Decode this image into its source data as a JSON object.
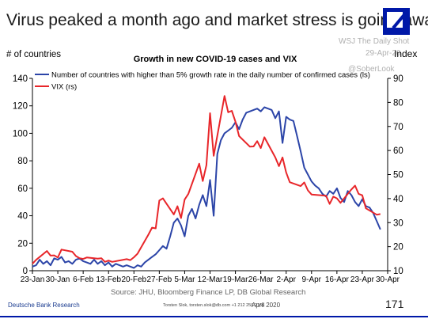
{
  "headline": "Virus peaked a month ago and market stress is going away",
  "watermarks": {
    "source": "WSJ The Daily Shot",
    "date": "29-Apr-20",
    "handle": "@SoberLook"
  },
  "chart_data": {
    "type": "line",
    "title": "Growth in new COVID-19 cases and VIX",
    "ylabel_left": "# of countries",
    "ylabel_right": "Index",
    "ylim_left": [
      0,
      140
    ],
    "ylim_right": [
      10,
      90
    ],
    "yticks_left": [
      0,
      20,
      40,
      60,
      80,
      100,
      120,
      140
    ],
    "yticks_right": [
      10,
      20,
      30,
      40,
      50,
      60,
      70,
      80,
      90
    ],
    "xlim": [
      "2020-01-23",
      "2020-04-30"
    ],
    "xtick_labels": [
      "23-Jan",
      "30-Jan",
      "6-Feb",
      "13-Feb",
      "20-Feb",
      "27-Feb",
      "5-Mar",
      "12-Mar",
      "19-Mar",
      "26-Mar",
      "2-Apr",
      "9-Apr",
      "16-Apr",
      "23-Apr",
      "30-Apr"
    ],
    "grid": false,
    "legend_position": "top-left",
    "series": [
      {
        "name": "Number of countries with higher than 5% growth rate in the daily number of confirmed cases (ls)",
        "axis": "left",
        "color": "#2c45a8",
        "points": [
          [
            "2020-01-23",
            3
          ],
          [
            "2020-01-24",
            4
          ],
          [
            "2020-01-25",
            8
          ],
          [
            "2020-01-26",
            5
          ],
          [
            "2020-01-27",
            7
          ],
          [
            "2020-01-28",
            4
          ],
          [
            "2020-01-29",
            9
          ],
          [
            "2020-01-30",
            8
          ],
          [
            "2020-01-31",
            10
          ],
          [
            "2020-02-01",
            6
          ],
          [
            "2020-02-02",
            7
          ],
          [
            "2020-02-03",
            5
          ],
          [
            "2020-02-04",
            8
          ],
          [
            "2020-02-05",
            9
          ],
          [
            "2020-02-06",
            7
          ],
          [
            "2020-02-07",
            6
          ],
          [
            "2020-02-08",
            5
          ],
          [
            "2020-02-09",
            8
          ],
          [
            "2020-02-10",
            5
          ],
          [
            "2020-02-11",
            7
          ],
          [
            "2020-02-12",
            4
          ],
          [
            "2020-02-13",
            6
          ],
          [
            "2020-02-14",
            3
          ],
          [
            "2020-02-15",
            5
          ],
          [
            "2020-02-16",
            4
          ],
          [
            "2020-02-17",
            3
          ],
          [
            "2020-02-18",
            4
          ],
          [
            "2020-02-19",
            3
          ],
          [
            "2020-02-20",
            2
          ],
          [
            "2020-02-21",
            4
          ],
          [
            "2020-02-22",
            3
          ],
          [
            "2020-02-23",
            6
          ],
          [
            "2020-02-24",
            8
          ],
          [
            "2020-02-25",
            10
          ],
          [
            "2020-02-26",
            12
          ],
          [
            "2020-02-27",
            15
          ],
          [
            "2020-02-28",
            18
          ],
          [
            "2020-02-29",
            16
          ],
          [
            "2020-03-01",
            25
          ],
          [
            "2020-03-02",
            35
          ],
          [
            "2020-03-03",
            38
          ],
          [
            "2020-03-04",
            33
          ],
          [
            "2020-03-05",
            25
          ],
          [
            "2020-03-06",
            40
          ],
          [
            "2020-03-07",
            45
          ],
          [
            "2020-03-08",
            38
          ],
          [
            "2020-03-09",
            48
          ],
          [
            "2020-03-10",
            55
          ],
          [
            "2020-03-11",
            47
          ],
          [
            "2020-03-12",
            66
          ],
          [
            "2020-03-13",
            40
          ],
          [
            "2020-03-14",
            85
          ],
          [
            "2020-03-15",
            95
          ],
          [
            "2020-03-16",
            100
          ],
          [
            "2020-03-17",
            102
          ],
          [
            "2020-03-18",
            104
          ],
          [
            "2020-03-19",
            108
          ],
          [
            "2020-03-20",
            103
          ],
          [
            "2020-03-21",
            110
          ],
          [
            "2020-03-22",
            115
          ],
          [
            "2020-03-23",
            116
          ],
          [
            "2020-03-24",
            117
          ],
          [
            "2020-03-25",
            118
          ],
          [
            "2020-03-26",
            116
          ],
          [
            "2020-03-27",
            119
          ],
          [
            "2020-03-28",
            118
          ],
          [
            "2020-03-29",
            117
          ],
          [
            "2020-03-30",
            111
          ],
          [
            "2020-03-31",
            116
          ],
          [
            "2020-04-01",
            93
          ],
          [
            "2020-04-02",
            112
          ],
          [
            "2020-04-03",
            110
          ],
          [
            "2020-04-04",
            109
          ],
          [
            "2020-04-05",
            98
          ],
          [
            "2020-04-06",
            87
          ],
          [
            "2020-04-07",
            75
          ],
          [
            "2020-04-08",
            70
          ],
          [
            "2020-04-09",
            65
          ],
          [
            "2020-04-10",
            62
          ],
          [
            "2020-04-11",
            60
          ],
          [
            "2020-04-12",
            56
          ],
          [
            "2020-04-13",
            54
          ],
          [
            "2020-04-14",
            58
          ],
          [
            "2020-04-15",
            56
          ],
          [
            "2020-04-16",
            60
          ],
          [
            "2020-04-17",
            53
          ],
          [
            "2020-04-18",
            50
          ],
          [
            "2020-04-19",
            58
          ],
          [
            "2020-04-20",
            55
          ],
          [
            "2020-04-21",
            50
          ],
          [
            "2020-04-22",
            47
          ],
          [
            "2020-04-23",
            52
          ],
          [
            "2020-04-24",
            47
          ],
          [
            "2020-04-25",
            46
          ],
          [
            "2020-04-26",
            42
          ],
          [
            "2020-04-27",
            36
          ],
          [
            "2020-04-28",
            30
          ]
        ]
      },
      {
        "name": "VIX (rs)",
        "axis": "right",
        "color": "#e8262a",
        "points": [
          [
            "2020-01-23",
            12.9
          ],
          [
            "2020-01-24",
            14.5
          ],
          [
            "2020-01-27",
            18.2
          ],
          [
            "2020-01-28",
            16.3
          ],
          [
            "2020-01-29",
            16.4
          ],
          [
            "2020-01-30",
            15.5
          ],
          [
            "2020-01-31",
            18.8
          ],
          [
            "2020-02-03",
            17.9
          ],
          [
            "2020-02-04",
            16.1
          ],
          [
            "2020-02-05",
            15.2
          ],
          [
            "2020-02-06",
            14.9
          ],
          [
            "2020-02-07",
            15.5
          ],
          [
            "2020-02-10",
            15.0
          ],
          [
            "2020-02-11",
            15.2
          ],
          [
            "2020-02-12",
            13.7
          ],
          [
            "2020-02-13",
            14.2
          ],
          [
            "2020-02-14",
            13.7
          ],
          [
            "2020-02-18",
            14.8
          ],
          [
            "2020-02-19",
            14.4
          ],
          [
            "2020-02-20",
            15.6
          ],
          [
            "2020-02-21",
            17.1
          ],
          [
            "2020-02-24",
            25.0
          ],
          [
            "2020-02-25",
            27.9
          ],
          [
            "2020-02-26",
            27.6
          ],
          [
            "2020-02-27",
            39.2
          ],
          [
            "2020-02-28",
            40.1
          ],
          [
            "2020-03-02",
            33.4
          ],
          [
            "2020-03-03",
            36.8
          ],
          [
            "2020-03-04",
            31.9
          ],
          [
            "2020-03-05",
            39.6
          ],
          [
            "2020-03-06",
            41.9
          ],
          [
            "2020-03-09",
            54.5
          ],
          [
            "2020-03-10",
            47.3
          ],
          [
            "2020-03-11",
            53.9
          ],
          [
            "2020-03-12",
            75.5
          ],
          [
            "2020-03-13",
            57.8
          ],
          [
            "2020-03-16",
            82.7
          ],
          [
            "2020-03-17",
            75.9
          ],
          [
            "2020-03-18",
            76.5
          ],
          [
            "2020-03-19",
            72.0
          ],
          [
            "2020-03-20",
            66.0
          ],
          [
            "2020-03-23",
            61.6
          ],
          [
            "2020-03-24",
            61.7
          ],
          [
            "2020-03-25",
            63.9
          ],
          [
            "2020-03-26",
            61.0
          ],
          [
            "2020-03-27",
            65.5
          ],
          [
            "2020-03-30",
            57.1
          ],
          [
            "2020-03-31",
            53.5
          ],
          [
            "2020-04-01",
            57.1
          ],
          [
            "2020-04-02",
            50.9
          ],
          [
            "2020-04-03",
            46.8
          ],
          [
            "2020-04-06",
            45.2
          ],
          [
            "2020-04-07",
            46.7
          ],
          [
            "2020-04-08",
            43.4
          ],
          [
            "2020-04-09",
            41.7
          ],
          [
            "2020-04-13",
            41.2
          ],
          [
            "2020-04-14",
            37.8
          ],
          [
            "2020-04-15",
            40.8
          ],
          [
            "2020-04-16",
            40.1
          ],
          [
            "2020-04-17",
            38.2
          ],
          [
            "2020-04-20",
            43.8
          ],
          [
            "2020-04-21",
            45.4
          ],
          [
            "2020-04-22",
            41.98
          ],
          [
            "2020-04-23",
            41.38
          ],
          [
            "2020-04-24",
            35.93
          ],
          [
            "2020-04-27",
            33.29
          ],
          [
            "2020-04-28",
            33.57
          ]
        ]
      }
    ]
  },
  "footer": {
    "source": "Source: JHU, Bloomberg Finance LP, DB Global Research",
    "brand": "Deutsche Bank Research",
    "contact": "Torsten Slok, torsten.slok@db.com +1 212 250-2155",
    "date": "April 2020",
    "page": "171"
  }
}
